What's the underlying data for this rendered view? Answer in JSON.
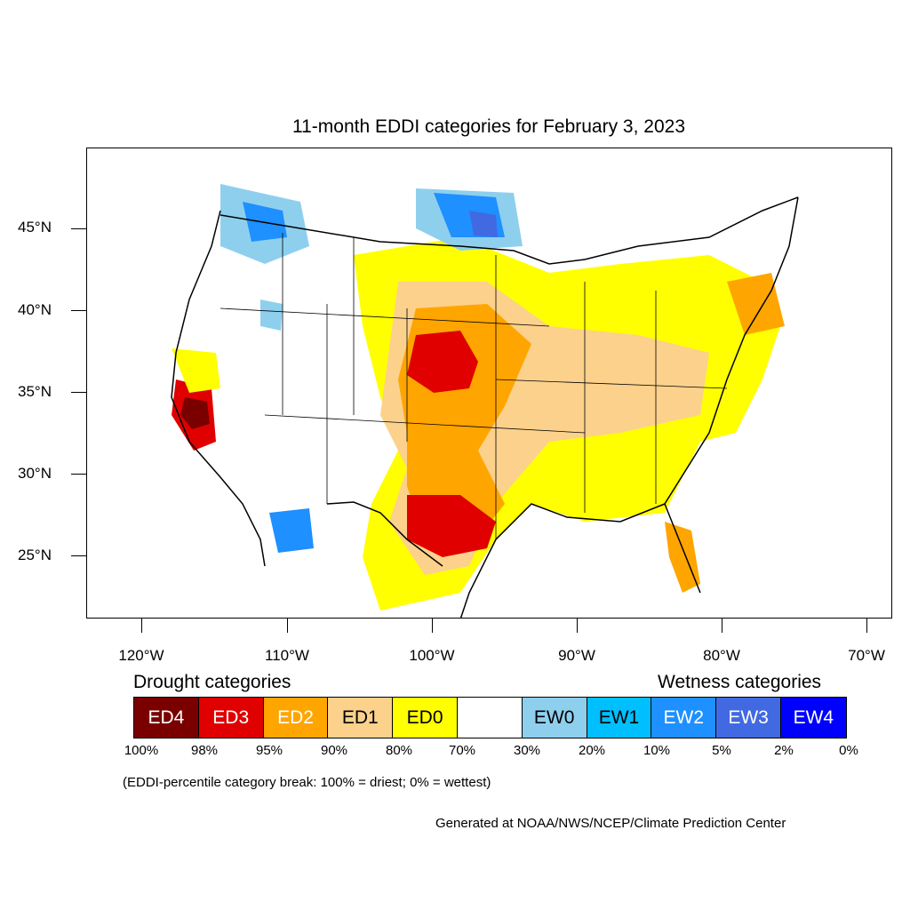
{
  "title": "11-month EDDI categories for February 3, 2023",
  "lat_labels": [
    "45°N",
    "40°N",
    "35°N",
    "30°N",
    "25°N"
  ],
  "lon_labels": [
    "120°W",
    "110°W",
    "100°W",
    "90°W",
    "80°W",
    "70°W"
  ],
  "legend": {
    "drought_heading": "Drought categories",
    "wetness_heading": "Wetness categories",
    "categories": [
      {
        "label": "ED4",
        "color": "#7a0000",
        "text_color": "#ffffff"
      },
      {
        "label": "ED3",
        "color": "#e00000",
        "text_color": "#ffffff"
      },
      {
        "label": "ED2",
        "color": "#ffa500",
        "text_color": "#ffffff"
      },
      {
        "label": "ED1",
        "color": "#fcd18c",
        "text_color": "#000000"
      },
      {
        "label": "ED0",
        "color": "#ffff00",
        "text_color": "#000000"
      },
      {
        "label": "",
        "color": "#ffffff",
        "text_color": "#000000"
      },
      {
        "label": "EW0",
        "color": "#8fcfee",
        "text_color": "#000000"
      },
      {
        "label": "EW1",
        "color": "#00bfff",
        "text_color": "#000000"
      },
      {
        "label": "EW2",
        "color": "#1e90ff",
        "text_color": "#ffffff"
      },
      {
        "label": "EW3",
        "color": "#4169e1",
        "text_color": "#ffffff"
      },
      {
        "label": "EW4",
        "color": "#0000ff",
        "text_color": "#ffffff"
      }
    ],
    "percentiles": [
      "100%",
      "98%",
      "95%",
      "90%",
      "80%",
      "70%",
      "30%",
      "20%",
      "10%",
      "5%",
      "2%",
      "0%"
    ]
  },
  "note": "(EDDI-percentile category break: 100% = driest; 0% = wettest)",
  "credit": "Generated at NOAA/NWS/NCEP/Climate Prediction Center"
}
